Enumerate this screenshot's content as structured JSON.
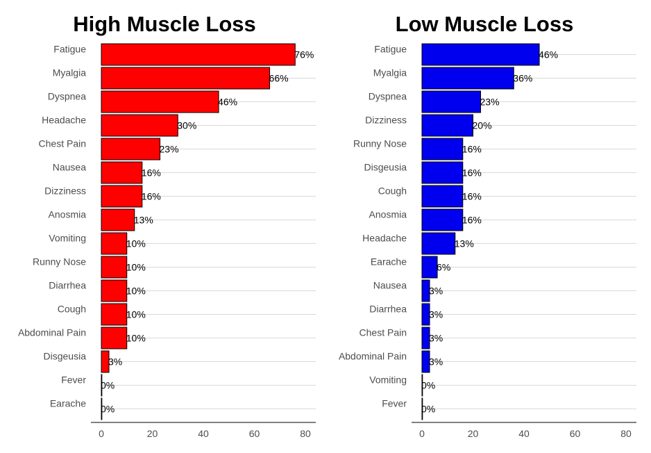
{
  "chart_data": [
    {
      "type": "bar",
      "orientation": "horizontal",
      "title": "High Muscle Loss",
      "color": "#ff0000",
      "categories": [
        "Fatigue",
        "Myalgia",
        "Dyspnea",
        "Headache",
        "Chest Pain",
        "Nausea",
        "Dizziness",
        "Anosmia",
        "Vomiting",
        "Runny Nose",
        "Diarrhea",
        "Cough",
        "Abdominal Pain",
        "Disgeusia",
        "Fever",
        "Earache"
      ],
      "values": [
        76,
        66,
        46,
        30,
        23,
        16,
        16,
        13,
        10,
        10,
        10,
        10,
        10,
        3,
        0,
        0
      ],
      "value_labels": [
        "76%",
        "66%",
        "46%",
        "30%",
        "23%",
        "16%",
        "16%",
        "13%",
        "10%",
        "10%",
        "10%",
        "10%",
        "10%",
        "3%",
        "0%",
        "0%"
      ],
      "xlim": [
        0,
        84
      ],
      "xticks": [
        0,
        20,
        40,
        60,
        80
      ],
      "grid": true
    },
    {
      "type": "bar",
      "orientation": "horizontal",
      "title": "Low Muscle Loss",
      "color": "#0000ee",
      "categories": [
        "Fatigue",
        "Myalgia",
        "Dyspnea",
        "Dizziness",
        "Runny Nose",
        "Disgeusia",
        "Cough",
        "Anosmia",
        "Headache",
        "Earache",
        "Nausea",
        "Diarrhea",
        "Chest Pain",
        "Abdominal Pain",
        "Vomiting",
        "Fever"
      ],
      "values": [
        46,
        36,
        23,
        20,
        16,
        16,
        16,
        16,
        13,
        6,
        3,
        3,
        3,
        3,
        0,
        0
      ],
      "value_labels": [
        "46%",
        "36%",
        "23%",
        "20%",
        "16%",
        "16%",
        "16%",
        "16%",
        "13%",
        "6%",
        "3%",
        "3%",
        "3%",
        "3%",
        "0%",
        "0%"
      ],
      "xlim": [
        0,
        84
      ],
      "xticks": [
        0,
        20,
        40,
        60,
        80
      ],
      "grid": true
    }
  ]
}
